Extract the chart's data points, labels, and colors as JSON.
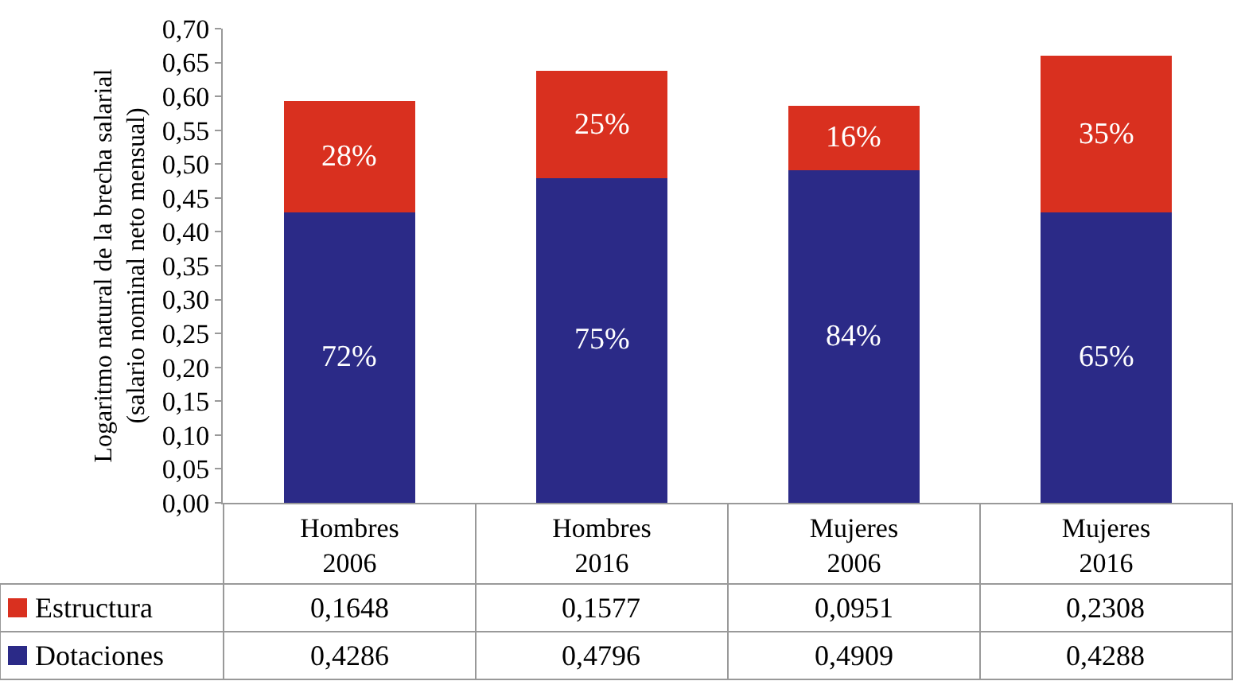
{
  "chart_data": {
    "type": "bar",
    "stacked": true,
    "ylabel": "Logaritmo natural de la brecha salarial\n(salario nominal neto mensual)",
    "categories": [
      "Hombres\n2006",
      "Hombres\n2016",
      "Mujeres\n2006",
      "Mujeres\n2016"
    ],
    "series": [
      {
        "name": "Dotaciones",
        "color": "#2b2a87",
        "values": [
          0.4286,
          0.4796,
          0.4909,
          0.4288
        ],
        "value_labels": [
          "0,4286",
          "0,4796",
          "0,4909",
          "0,4288"
        ]
      },
      {
        "name": "Estructura",
        "color": "#d9301f",
        "values": [
          0.1648,
          0.1577,
          0.0951,
          0.2308
        ],
        "value_labels": [
          "0,1648",
          "0,1577",
          "0,0951",
          "0,2308"
        ]
      }
    ],
    "annotations": [
      "72%",
      "75%",
      "84%",
      "65%",
      "28%",
      "25%",
      "16%",
      "35%"
    ],
    "ylim": [
      0,
      0.7
    ],
    "yticks": [
      {
        "value": 0,
        "label": "0,00"
      },
      {
        "value": 0.05,
        "label": "0,05"
      },
      {
        "value": 0.1,
        "label": "0,10"
      },
      {
        "value": 0.15,
        "label": "0,15"
      },
      {
        "value": 0.2,
        "label": "0,20"
      },
      {
        "value": 0.25,
        "label": "0,25"
      },
      {
        "value": 0.3,
        "label": "0,30"
      },
      {
        "value": 0.35,
        "label": "0,35"
      },
      {
        "value": 0.4,
        "label": "0,40"
      },
      {
        "value": 0.45,
        "label": "0,45"
      },
      {
        "value": 0.5,
        "label": "0,50"
      },
      {
        "value": 0.55,
        "label": "0,55"
      },
      {
        "value": 0.6,
        "label": "0,60"
      },
      {
        "value": 0.65,
        "label": "0,65"
      },
      {
        "value": 0.7,
        "label": "0,70"
      }
    ],
    "data_labels": true,
    "legend": "bottom left",
    "grid": false
  }
}
